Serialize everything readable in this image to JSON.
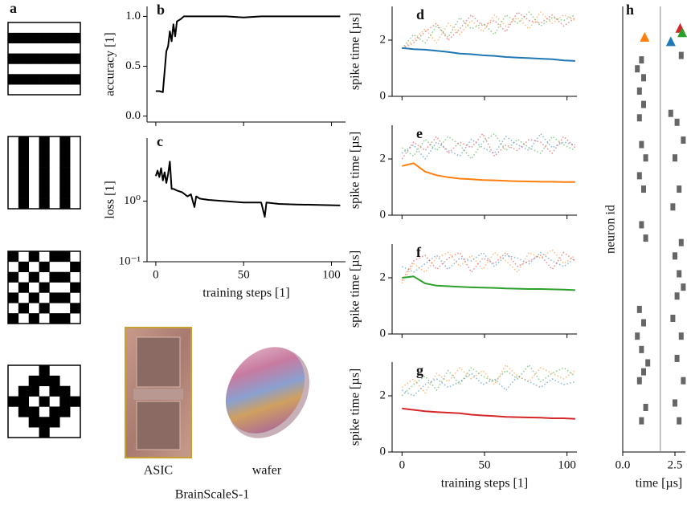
{
  "figure": {
    "panel_a": "a",
    "asic": "ASIC",
    "wafer": "wafer",
    "system": "BrainScaleS-1"
  },
  "chart_data": [
    {
      "type": "line",
      "panel": "b",
      "ylabel": "accuracy [1]",
      "x": [
        0,
        2,
        4,
        5,
        6,
        7,
        8,
        9,
        10,
        11,
        12,
        14,
        16,
        20,
        30,
        40,
        50,
        60,
        70,
        80,
        90,
        100,
        105
      ],
      "series": [
        {
          "color": "#000000",
          "values": [
            0.25,
            0.25,
            0.24,
            0.45,
            0.65,
            0.7,
            0.85,
            0.75,
            0.92,
            0.8,
            0.95,
            0.97,
            1.0,
            1.0,
            1.0,
            1.0,
            0.99,
            1.0,
            1.0,
            1.0,
            1.0,
            1.0,
            1.0
          ]
        }
      ],
      "xlim": [
        -5,
        108
      ],
      "xticks": [
        0,
        50,
        100
      ],
      "xtick_labels": false,
      "ylim": [
        -0.06,
        1.1
      ],
      "yticks": [
        {
          "value": 0,
          "label": "0.0"
        },
        {
          "value": 0.5,
          "label": "0.5"
        },
        {
          "value": 1,
          "label": "1.0"
        }
      ]
    },
    {
      "type": "line",
      "panel": "c",
      "ylabel": "loss [1]",
      "xlabel": "training steps [1]",
      "log_y": true,
      "x": [
        0,
        1,
        2,
        3,
        4,
        5,
        6,
        7,
        8,
        9,
        10,
        12,
        15,
        18,
        20,
        22,
        23,
        25,
        30,
        40,
        50,
        60,
        62,
        63,
        70,
        80,
        90,
        105
      ],
      "series": [
        {
          "color": "#000000",
          "values": [
            2.6,
            3.2,
            2.5,
            3.5,
            2.2,
            3.0,
            2.0,
            2.8,
            4.5,
            1.6,
            1.6,
            1.5,
            1.4,
            1.2,
            1.3,
            0.8,
            1.2,
            1.1,
            1.05,
            1.0,
            0.95,
            0.95,
            0.55,
            0.95,
            0.9,
            0.88,
            0.87,
            0.85
          ]
        }
      ],
      "xlim": [
        -5,
        108
      ],
      "xticks": [
        0,
        50,
        100
      ],
      "ylim": [
        0.1,
        11
      ],
      "yticks": [
        {
          "value": 0.1,
          "label": "10⁻¹"
        },
        {
          "value": 1,
          "label": "10⁰"
        }
      ]
    },
    {
      "type": "line",
      "panel": "d",
      "ylabel": "spike time [µs]",
      "x": [
        0,
        7,
        14,
        21,
        28,
        35,
        42,
        49,
        56,
        63,
        70,
        77,
        84,
        91,
        98,
        105
      ],
      "series": [
        {
          "color": "#ff7f0e",
          "style": "dotted",
          "values": [
            1.7,
            2.0,
            2.4,
            1.9,
            2.6,
            2.2,
            2.7,
            2.3,
            2.9,
            2.5,
            2.8,
            2.4,
            3.0,
            2.6,
            2.9,
            2.7
          ]
        },
        {
          "color": "#2ca02c",
          "style": "dotted",
          "values": [
            1.7,
            2.2,
            1.9,
            2.5,
            2.1,
            2.8,
            2.4,
            2.6,
            2.2,
            2.9,
            2.6,
            3.0,
            2.5,
            2.8,
            2.7,
            2.9
          ]
        },
        {
          "color": "#d62728",
          "style": "dotted",
          "values": [
            1.7,
            1.9,
            2.3,
            2.6,
            2.0,
            2.4,
            2.9,
            2.5,
            2.7,
            2.3,
            3.0,
            2.7,
            2.6,
            2.9,
            2.5,
            2.8
          ]
        },
        {
          "color": "#1f77b4",
          "values": [
            1.72,
            1.68,
            1.66,
            1.62,
            1.58,
            1.52,
            1.5,
            1.46,
            1.44,
            1.4,
            1.38,
            1.36,
            1.34,
            1.32,
            1.28,
            1.26
          ]
        }
      ],
      "xlim": [
        -6,
        106
      ],
      "xticks": [
        0,
        50,
        100
      ],
      "xtick_labels": false,
      "ylim": [
        0,
        3.2
      ],
      "yticks": [
        0,
        2
      ]
    },
    {
      "type": "line",
      "panel": "e",
      "ylabel": "spike time [µs]",
      "x": [
        0,
        7,
        14,
        21,
        28,
        35,
        42,
        49,
        56,
        63,
        70,
        77,
        84,
        91,
        98,
        105
      ],
      "series": [
        {
          "color": "#1f77b4",
          "style": "dotted",
          "values": [
            2.2,
            2.5,
            2.0,
            2.6,
            2.3,
            2.1,
            2.7,
            2.4,
            2.2,
            2.8,
            2.5,
            2.3,
            2.9,
            2.4,
            2.6,
            2.5
          ]
        },
        {
          "color": "#2ca02c",
          "style": "dotted",
          "values": [
            2.4,
            2.1,
            2.7,
            2.3,
            2.8,
            2.5,
            2.0,
            2.6,
            2.9,
            2.3,
            2.7,
            2.4,
            2.2,
            2.8,
            2.5,
            2.3
          ]
        },
        {
          "color": "#d62728",
          "style": "dotted",
          "values": [
            2.0,
            2.6,
            2.3,
            2.8,
            2.2,
            2.6,
            2.4,
            2.9,
            2.1,
            2.5,
            2.3,
            2.7,
            2.6,
            2.2,
            2.8,
            2.4
          ]
        },
        {
          "color": "#ff7f0e",
          "values": [
            1.75,
            1.85,
            1.55,
            1.42,
            1.35,
            1.3,
            1.28,
            1.25,
            1.24,
            1.22,
            1.21,
            1.2,
            1.19,
            1.19,
            1.18,
            1.18
          ]
        }
      ],
      "xlim": [
        -6,
        106
      ],
      "xticks": [
        0,
        50,
        100
      ],
      "xtick_labels": false,
      "ylim": [
        0,
        3.2
      ],
      "yticks": [
        0,
        2
      ]
    },
    {
      "type": "line",
      "panel": "f",
      "ylabel": "spike time [µs]",
      "x": [
        0,
        7,
        14,
        21,
        28,
        35,
        42,
        49,
        56,
        63,
        70,
        77,
        84,
        91,
        98,
        105
      ],
      "series": [
        {
          "color": "#1f77b4",
          "style": "dotted",
          "values": [
            2.4,
            2.2,
            2.5,
            2.8,
            2.3,
            2.7,
            2.6,
            2.9,
            2.4,
            2.8,
            2.7,
            2.5,
            2.9,
            2.6,
            2.4,
            2.7
          ]
        },
        {
          "color": "#ff7f0e",
          "style": "dotted",
          "values": [
            1.8,
            2.5,
            2.2,
            2.7,
            2.9,
            2.4,
            2.8,
            2.3,
            2.9,
            2.6,
            2.2,
            2.9,
            2.7,
            3.0,
            2.5,
            2.8
          ]
        },
        {
          "color": "#d62728",
          "style": "dotted",
          "values": [
            1.9,
            2.6,
            2.8,
            2.3,
            2.7,
            2.9,
            2.2,
            2.7,
            2.5,
            2.9,
            2.4,
            2.6,
            2.8,
            2.3,
            2.9,
            2.6
          ]
        },
        {
          "color": "#2ca02c",
          "values": [
            2.0,
            2.05,
            1.8,
            1.72,
            1.7,
            1.68,
            1.66,
            1.65,
            1.64,
            1.62,
            1.61,
            1.6,
            1.6,
            1.59,
            1.58,
            1.56
          ]
        }
      ],
      "xlim": [
        -6,
        106
      ],
      "xticks": [
        0,
        50,
        100
      ],
      "xtick_labels": false,
      "ylim": [
        0,
        3.2
      ],
      "yticks": [
        0,
        2
      ]
    },
    {
      "type": "line",
      "panel": "g",
      "ylabel": "spike time [µs]",
      "xlabel": "training steps [1]",
      "x": [
        0,
        7,
        14,
        21,
        28,
        35,
        42,
        49,
        56,
        63,
        70,
        77,
        84,
        91,
        98,
        105
      ],
      "series": [
        {
          "color": "#1f77b4",
          "style": "dotted",
          "values": [
            2.2,
            2.0,
            2.4,
            2.6,
            2.3,
            2.5,
            2.8,
            2.4,
            2.6,
            2.2,
            2.7,
            2.5,
            2.3,
            2.6,
            2.4,
            2.5
          ]
        },
        {
          "color": "#ff7f0e",
          "style": "dotted",
          "values": [
            2.3,
            2.6,
            2.1,
            2.8,
            2.5,
            3.0,
            2.6,
            2.9,
            2.4,
            3.1,
            2.7,
            2.5,
            3.0,
            2.8,
            2.6,
            2.9
          ]
        },
        {
          "color": "#2ca02c",
          "style": "dotted",
          "values": [
            2.0,
            2.4,
            2.7,
            2.2,
            2.9,
            2.4,
            3.0,
            2.7,
            2.5,
            2.9,
            2.6,
            3.1,
            2.5,
            2.8,
            3.0,
            2.7
          ]
        },
        {
          "color": "#d62728",
          "values": [
            1.55,
            1.5,
            1.45,
            1.42,
            1.4,
            1.38,
            1.33,
            1.3,
            1.28,
            1.25,
            1.24,
            1.23,
            1.22,
            1.2,
            1.2,
            1.18
          ]
        }
      ],
      "xlim": [
        -6,
        106
      ],
      "xticks": [
        0,
        50,
        100
      ],
      "ylim": [
        0,
        3.2
      ],
      "yticks": [
        0,
        2
      ]
    },
    {
      "type": "scatter",
      "panel": "h",
      "ylabel": "neuron id",
      "xlabel": "time [µs]",
      "color": "#666666",
      "x": [
        0.9,
        0.7,
        1.0,
        0.8,
        1.0,
        0.8,
        0.9,
        1.1,
        0.8,
        1.0,
        0.9,
        1.1,
        0.8,
        1.0,
        0.7,
        0.9,
        1.2,
        1.0,
        0.8,
        1.1,
        0.9,
        2.8,
        2.3,
        2.6,
        2.9,
        2.5,
        2.7,
        2.4,
        2.8,
        2.5,
        2.7,
        2.9,
        2.6,
        2.4,
        2.8,
        2.6,
        2.9,
        2.5,
        2.7
      ],
      "y": [
        88,
        86,
        84,
        81,
        78,
        75,
        69,
        66,
        62,
        59,
        51,
        48,
        32,
        29,
        26,
        23,
        20,
        18,
        16,
        10,
        7,
        89,
        76,
        74,
        70,
        66,
        59,
        55,
        47,
        44,
        40,
        37,
        35,
        30,
        26,
        21,
        16,
        11,
        7
      ],
      "markers": {
        "x": [
          1.05,
          2.3,
          2.75,
          2.85
        ],
        "y": [
          93,
          92,
          95,
          94
        ],
        "colors": [
          "#ff7f0e",
          "#1f77b4",
          "#d62728",
          "#2ca02c"
        ]
      },
      "vline": 1.8,
      "xlim": [
        0,
        3.0
      ],
      "xticks": [
        {
          "value": 0,
          "label": "0.0"
        },
        2.5
      ],
      "ylim": [
        0,
        100
      ]
    }
  ]
}
